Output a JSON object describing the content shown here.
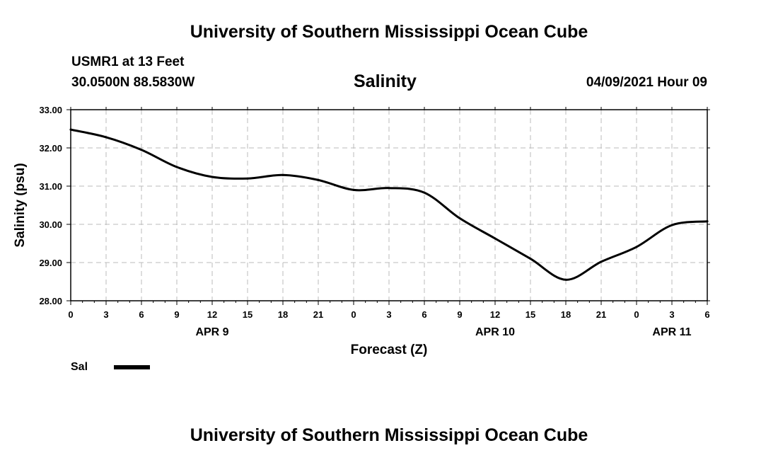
{
  "header": {
    "title": "University of Southern Mississippi Ocean Cube",
    "station": "USMR1 at 13 Feet",
    "coords": "30.0500N  88.5830W",
    "variable": "Salinity",
    "datetime": "04/09/2021 Hour 09"
  },
  "footer": {
    "title": "University of Southern Mississippi Ocean Cube"
  },
  "legend": {
    "label": "Sal",
    "color": "#000000"
  },
  "chart_data": {
    "type": "line",
    "title": "Salinity",
    "xlabel": "Forecast (Z)",
    "ylabel": "Salinity (psu)",
    "ylim": [
      28.0,
      33.0
    ],
    "xlim": [
      0,
      54
    ],
    "grid": true,
    "legend_position": "bottom-left",
    "y_ticks": [
      "28.00",
      "29.00",
      "30.00",
      "31.00",
      "32.00",
      "33.00"
    ],
    "x_tick_labels": [
      "0",
      "3",
      "6",
      "9",
      "12",
      "15",
      "18",
      "21",
      "0",
      "3",
      "6",
      "9",
      "12",
      "15",
      "18",
      "21",
      "0",
      "3",
      "6"
    ],
    "date_labels": [
      {
        "label": "APR 9",
        "hour": 12
      },
      {
        "label": "APR 10",
        "hour": 36
      },
      {
        "label": "APR 11",
        "hour": 51
      }
    ],
    "series": [
      {
        "name": "Sal",
        "color": "#000000",
        "x": [
          0,
          3,
          6,
          9,
          12,
          15,
          18,
          21,
          24,
          27,
          30,
          33,
          36,
          39,
          42,
          45,
          48,
          51,
          54
        ],
        "values": [
          32.48,
          32.28,
          31.95,
          31.5,
          31.24,
          31.2,
          31.29,
          31.16,
          30.9,
          30.95,
          30.83,
          30.16,
          29.63,
          29.1,
          28.55,
          29.02,
          29.41,
          29.98,
          30.08
        ]
      }
    ]
  }
}
